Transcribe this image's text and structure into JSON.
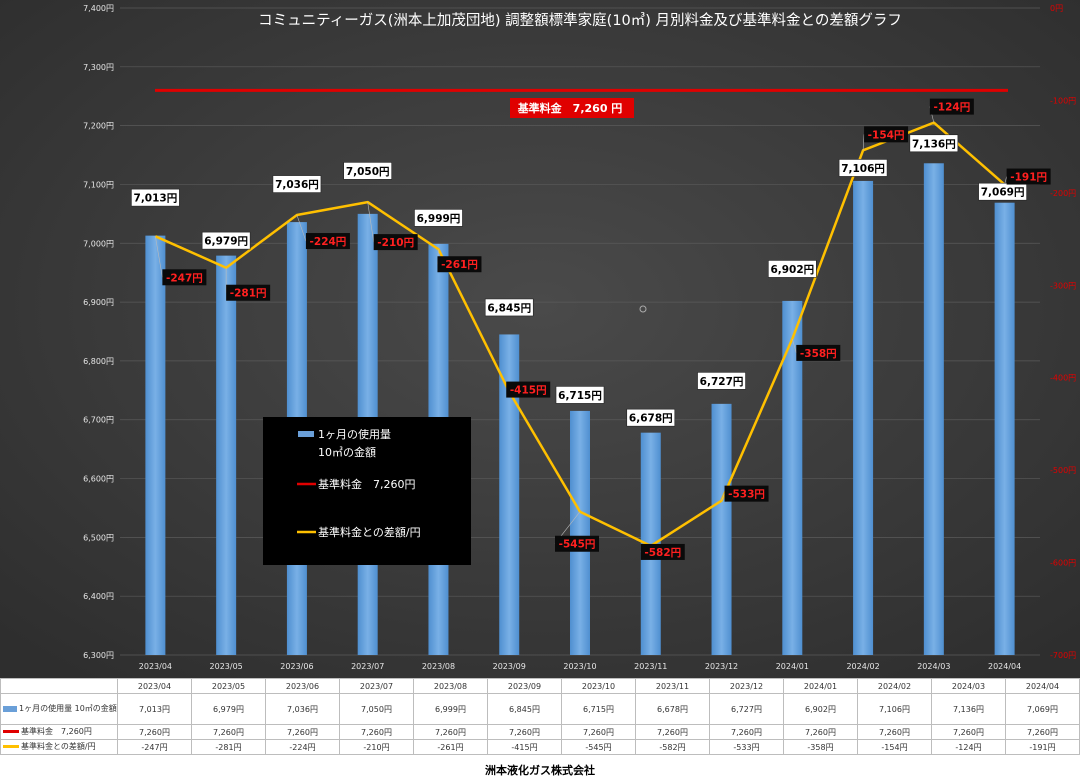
{
  "chart_data": {
    "type": "bar",
    "title": "コミュニティーガス(洲本上加茂団地) 調整額標準家庭(10㎥) 月別料金及び基準料金との差額グラフ",
    "categories": [
      "2023/04",
      "2023/05",
      "2023/06",
      "2023/07",
      "2023/08",
      "2023/09",
      "2023/10",
      "2023/11",
      "2023/12",
      "2024/01",
      "2024/02",
      "2024/03",
      "2024/04"
    ],
    "series": [
      {
        "name": "1ヶ月の使用量 10㎥の金額",
        "type": "bar",
        "axis": "left",
        "color": "#5b9bd5",
        "values": [
          7013,
          6979,
          7036,
          7050,
          6999,
          6845,
          6715,
          6678,
          6727,
          6902,
          7106,
          7136,
          7069
        ],
        "labels": [
          "7,013円",
          "6,979円",
          "7,036円",
          "7,050円",
          "6,999円",
          "6,845円",
          "6,715円",
          "6,678円",
          "6,727円",
          "6,902円",
          "7,106円",
          "7,136円",
          "7,069円"
        ]
      },
      {
        "name": "基準料金　7,260円",
        "type": "line",
        "axis": "left",
        "color": "#e00000",
        "values": [
          7260,
          7260,
          7260,
          7260,
          7260,
          7260,
          7260,
          7260,
          7260,
          7260,
          7260,
          7260,
          7260
        ],
        "labels": [
          "7,260円",
          "7,260円",
          "7,260円",
          "7,260円",
          "7,260円",
          "7,260円",
          "7,260円",
          "7,260円",
          "7,260円",
          "7,260円",
          "7,260円",
          "7,260円",
          "7,260円"
        ]
      },
      {
        "name": "基準料金との差額/円",
        "type": "line",
        "axis": "right",
        "color": "#ffc000",
        "values": [
          -247,
          -281,
          -224,
          -210,
          -261,
          -415,
          -545,
          -582,
          -533,
          -358,
          -154,
          -124,
          -191
        ],
        "labels": [
          "-247円",
          "-281円",
          "-224円",
          "-210円",
          "-261円",
          "-415円",
          "-545円",
          "-582円",
          "-533円",
          "-358円",
          "-154円",
          "-124円",
          "-191円"
        ]
      }
    ],
    "ylim": [
      6300,
      7400
    ],
    "yticks": [
      "6,300円",
      "6,400円",
      "6,500円",
      "6,600円",
      "6,700円",
      "6,800円",
      "6,900円",
      "7,000円",
      "7,100円",
      "7,200円",
      "7,300円",
      "7,400円"
    ],
    "y2lim": [
      -700,
      0
    ],
    "y2ticks": [
      "0円",
      "-100円",
      "-200円",
      "-300円",
      "-400円",
      "-500円",
      "-600円",
      "-700円"
    ],
    "base_label": "基準料金　7,260 円",
    "legend": {
      "position": "center-left",
      "bar_line1": "1ヶ月の使用量",
      "bar_line2": "10㎥の金額",
      "red": "基準料金　7,260円",
      "yellow": "基準料金との差額/円"
    },
    "table_rows": [
      {
        "label": "1ヶ月の使用量 10㎥の金額",
        "values": [
          "7,013円",
          "6,979円",
          "7,036円",
          "7,050円",
          "6,999円",
          "6,845円",
          "6,715円",
          "6,678円",
          "6,727円",
          "6,902円",
          "7,106円",
          "7,136円",
          "7,069円"
        ]
      },
      {
        "label": "基準料金　7,260円",
        "values": [
          "7,260円",
          "7,260円",
          "7,260円",
          "7,260円",
          "7,260円",
          "7,260円",
          "7,260円",
          "7,260円",
          "7,260円",
          "7,260円",
          "7,260円",
          "7,260円",
          "7,260円"
        ]
      },
      {
        "label": "基準料金との差額/円",
        "values": [
          "-247円",
          "-281円",
          "-224円",
          "-210円",
          "-261円",
          "-415円",
          "-545円",
          "-582円",
          "-533円",
          "-358円",
          "-154円",
          "-124円",
          "-191円"
        ]
      }
    ]
  },
  "footer": "洲本液化ガス株式会社",
  "colors": {
    "background": "#3b3b3b",
    "bar": "#5b9bd5",
    "base": "#e00000",
    "diff": "#ffc000"
  }
}
